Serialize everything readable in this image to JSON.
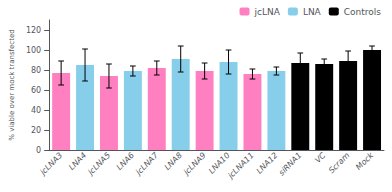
{
  "chart_data": {
    "type": "bar",
    "ylabel": "% viable over mock transfected",
    "categories": [
      "jcLNA3",
      "LNA4",
      "jcLNA5",
      "LNA6",
      "jcLNA7",
      "LNA8",
      "jcLNA9",
      "LNA10",
      "jcLNA11",
      "LNA12",
      "siRNA1",
      "VC",
      "Scram",
      "Mock"
    ],
    "series": [
      {
        "name": "jcLNA",
        "color": "#FF80C0",
        "values": [
          77,
          null,
          74,
          null,
          82,
          null,
          79,
          null,
          76,
          null,
          null,
          null,
          null,
          null
        ],
        "errors": [
          12,
          null,
          12,
          null,
          7,
          null,
          8,
          null,
          5,
          null,
          null,
          null,
          null,
          null
        ]
      },
      {
        "name": "LNA",
        "color": "#87CEEB",
        "values": [
          null,
          85,
          null,
          79,
          null,
          91,
          null,
          88,
          null,
          79,
          null,
          null,
          null,
          null
        ],
        "errors": [
          null,
          16,
          null,
          5,
          null,
          13,
          null,
          12,
          null,
          4,
          null,
          null,
          null,
          null
        ]
      },
      {
        "name": "Controls",
        "color": "#000000",
        "values": [
          null,
          null,
          null,
          null,
          null,
          null,
          null,
          null,
          null,
          null,
          87,
          86,
          89,
          100
        ],
        "errors": [
          null,
          null,
          null,
          null,
          null,
          null,
          null,
          null,
          null,
          null,
          10,
          5,
          10,
          4
        ]
      }
    ],
    "ylim": [
      0,
      130
    ],
    "yticks": [
      0,
      20,
      40,
      60,
      80,
      100,
      120
    ],
    "grid": false,
    "legend": "upper right"
  }
}
